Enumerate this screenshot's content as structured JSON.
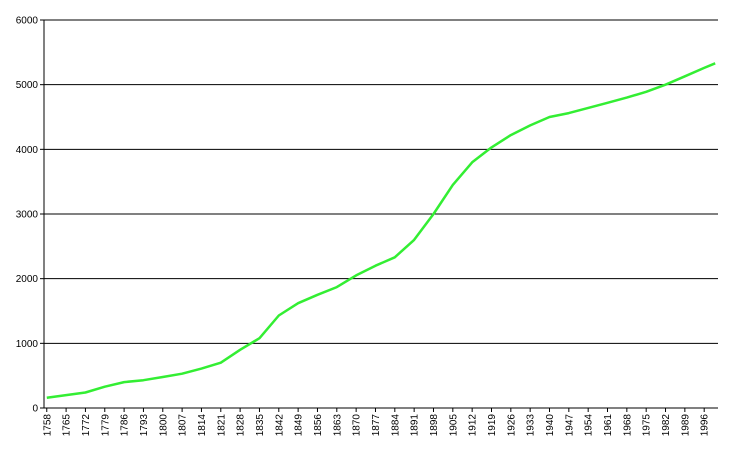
{
  "chart_data": {
    "type": "line",
    "x": [
      1758,
      1765,
      1772,
      1779,
      1786,
      1793,
      1800,
      1807,
      1814,
      1821,
      1828,
      1835,
      1842,
      1849,
      1856,
      1863,
      1870,
      1877,
      1884,
      1891,
      1898,
      1905,
      1912,
      1919,
      1926,
      1933,
      1940,
      1947,
      1954,
      1961,
      1968,
      1975,
      1982,
      1989,
      1996,
      2000
    ],
    "series": [
      {
        "color": "#33ee33",
        "values": [
          160,
          200,
          240,
          330,
          400,
          430,
          480,
          530,
          610,
          700,
          900,
          1080,
          1430,
          1620,
          1750,
          1870,
          2050,
          2200,
          2330,
          2600,
          3000,
          3450,
          3800,
          4030,
          4220,
          4370,
          4500,
          4560,
          4640,
          4720,
          4800,
          4890,
          5000,
          5130,
          5260,
          5330
        ]
      }
    ],
    "xlim": [
      1757,
      2001
    ],
    "xticks": [
      1758,
      1765,
      1772,
      1779,
      1786,
      1793,
      1800,
      1807,
      1814,
      1821,
      1828,
      1835,
      1842,
      1849,
      1856,
      1863,
      1870,
      1877,
      1884,
      1891,
      1898,
      1905,
      1912,
      1919,
      1926,
      1933,
      1940,
      1947,
      1954,
      1961,
      1968,
      1975,
      1982,
      1989,
      1996
    ],
    "ylim": [
      0,
      6000
    ],
    "yticks": [
      0,
      1000,
      2000,
      3000,
      4000,
      5000,
      6000
    ],
    "grid": true
  }
}
